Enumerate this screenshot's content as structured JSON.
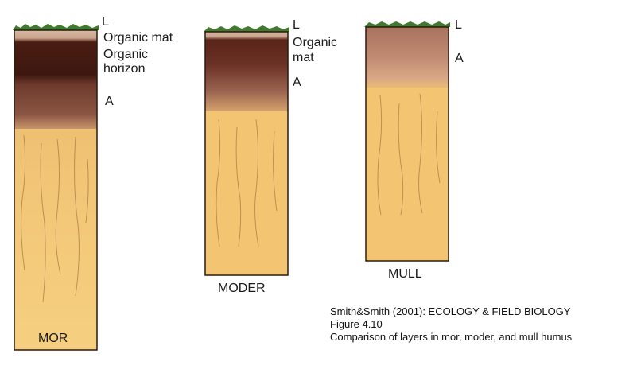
{
  "profiles": {
    "mor": {
      "name": "MOR",
      "labels": {
        "l": "L",
        "organic_mat": "Organic mat",
        "organic_horizon_1": "Organic",
        "organic_horizon_2": "horizon",
        "a": "A"
      }
    },
    "moder": {
      "name": "MODER",
      "labels": {
        "l": "L",
        "organic_mat_1": "Organic",
        "organic_mat_2": "mat",
        "a": "A"
      }
    },
    "mull": {
      "name": "MULL",
      "labels": {
        "l": "L",
        "a": "A"
      }
    }
  },
  "caption": {
    "line1": "Smith&Smith (2001): ECOLOGY & FIELD BIOLOGY",
    "line2": "Figure 4.10",
    "line3": "Comparison of layers in mor, moder, and mull humus"
  },
  "colors": {
    "litter": "#3f7a2e",
    "organic_mat": "#c9a48c",
    "organic_horizon": "#3d1810",
    "a_horizon": "#7a4634",
    "mineral_soil": "#f3c572",
    "outline": "#2a1a10"
  }
}
